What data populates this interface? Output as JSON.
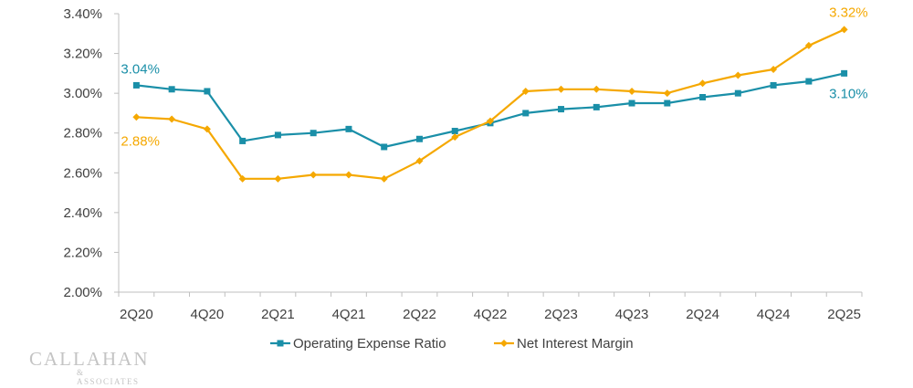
{
  "chart_data": {
    "type": "line",
    "categories": [
      "2Q20",
      "3Q20",
      "4Q20",
      "1Q21",
      "2Q21",
      "3Q21",
      "4Q21",
      "1Q22",
      "2Q22",
      "3Q22",
      "4Q22",
      "1Q23",
      "2Q23",
      "3Q23",
      "4Q23",
      "1Q24",
      "2Q24",
      "3Q24",
      "4Q24",
      "1Q25",
      "2Q25"
    ],
    "tick_labels": [
      "2Q20",
      "4Q20",
      "2Q21",
      "4Q21",
      "2Q22",
      "4Q22",
      "2Q23",
      "4Q23",
      "2Q24",
      "4Q24",
      "2Q25"
    ],
    "yticks": [
      "2.00%",
      "2.20%",
      "2.40%",
      "2.60%",
      "2.80%",
      "3.00%",
      "3.20%",
      "3.40%"
    ],
    "ylim": [
      2.0,
      3.4
    ],
    "series": [
      {
        "name": "Operating Expense Ratio",
        "color": "#1A8FA8",
        "marker": "square",
        "values": [
          3.04,
          3.02,
          3.01,
          2.76,
          2.79,
          2.8,
          2.82,
          2.73,
          2.77,
          2.81,
          2.85,
          2.9,
          2.92,
          2.93,
          2.95,
          2.95,
          2.98,
          3.0,
          3.04,
          3.06,
          3.1
        ],
        "start_label": "3.04%",
        "end_label": "3.10%"
      },
      {
        "name": "Net Interest Margin",
        "color": "#F5A800",
        "marker": "diamond",
        "values": [
          2.88,
          2.87,
          2.82,
          2.57,
          2.57,
          2.59,
          2.59,
          2.57,
          2.66,
          2.78,
          2.86,
          3.01,
          3.02,
          3.02,
          3.01,
          3.0,
          3.05,
          3.09,
          3.12,
          3.24,
          3.32
        ],
        "start_label": "2.88%",
        "end_label": "3.32%"
      }
    ],
    "legend_position": "bottom",
    "grid": false
  },
  "logo": {
    "main": "CALLAHAN",
    "sub": "& ASSOCIATES"
  }
}
